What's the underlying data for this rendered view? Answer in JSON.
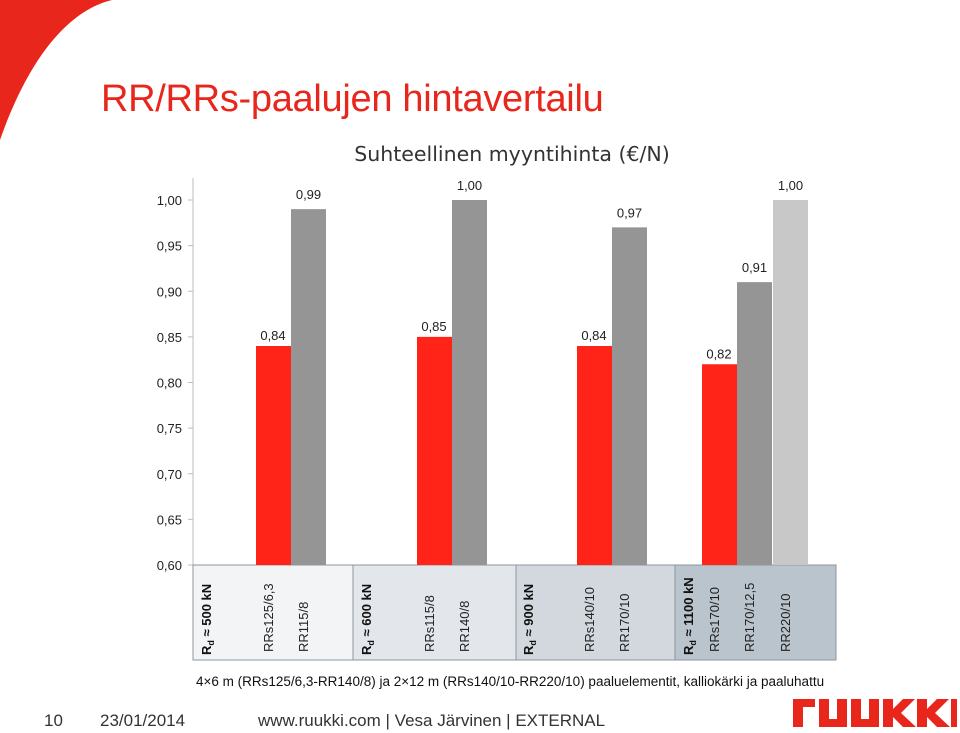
{
  "slide": {
    "title": "RR/RRs-paalujen hintavertailu",
    "footnote": "4×6 m (RRs125/6,3-RR140/8) ja 2×12 m (RRs140/10-RR220/10) paaluelementit, kalliokärki ja paaluhattu",
    "page_number": "10",
    "date": "23/01/2014",
    "footer_text": "www.ruukki.com | Vesa Järvinen | EXTERNAL",
    "logo_text": "ruukki"
  },
  "colors": {
    "brand_red": "#e8261b",
    "bar_red": "#ff2417",
    "bar_gray": "#959595",
    "bar_light_gray": "#c8c8c8",
    "group1_bg": "#f2f4f6",
    "group2_bg": "#e3e7eb",
    "group3_bg": "#d2d8de",
    "group4_bg": "#b9c4cc"
  },
  "chart_data": {
    "type": "bar",
    "title": "Suhteellinen myyntihinta (€/N)",
    "ylim": [
      0.6,
      1.0
    ],
    "yticks": [
      "1,00",
      "0,95",
      "0,90",
      "0,85",
      "0,80",
      "0,75",
      "0,70",
      "0,65",
      "0,60"
    ],
    "grid": false,
    "groups": [
      {
        "label_main": "R",
        "label_sub": "d",
        "label_rest": " ≈ 500 kN",
        "bars": [
          {
            "label": "RRs125/6,3",
            "value": 0.84,
            "value_label": "0,84",
            "color": "red"
          },
          {
            "label": "RR115/8",
            "value": 0.99,
            "value_label": "0,99",
            "color": "gray"
          }
        ]
      },
      {
        "label_main": "R",
        "label_sub": "d",
        "label_rest": " ≈ 600 kN",
        "bars": [
          {
            "label": "RRs115/8",
            "value": 0.85,
            "value_label": "0,85",
            "color": "red"
          },
          {
            "label": "RR140/8",
            "value": 1.0,
            "value_label": "1,00",
            "color": "gray"
          }
        ]
      },
      {
        "label_main": "R",
        "label_sub": "d",
        "label_rest": " ≈ 900 kN",
        "bars": [
          {
            "label": "RRs140/10",
            "value": 0.84,
            "value_label": "0,84",
            "color": "red"
          },
          {
            "label": "RR170/10",
            "value": 0.97,
            "value_label": "0,97",
            "color": "gray"
          }
        ]
      },
      {
        "label_main": "R",
        "label_sub": "d",
        "label_rest": " ≈ 1100 kN",
        "bars": [
          {
            "label": "RRs170/10",
            "value": 0.82,
            "value_label": "0,82",
            "color": "red"
          },
          {
            "label": "RR170/12,5",
            "value": 0.91,
            "value_label": "0,91",
            "color": "gray"
          },
          {
            "label": "RR220/10",
            "value": 1.0,
            "value_label": "1,00",
            "color": "lightgray"
          }
        ]
      }
    ]
  }
}
